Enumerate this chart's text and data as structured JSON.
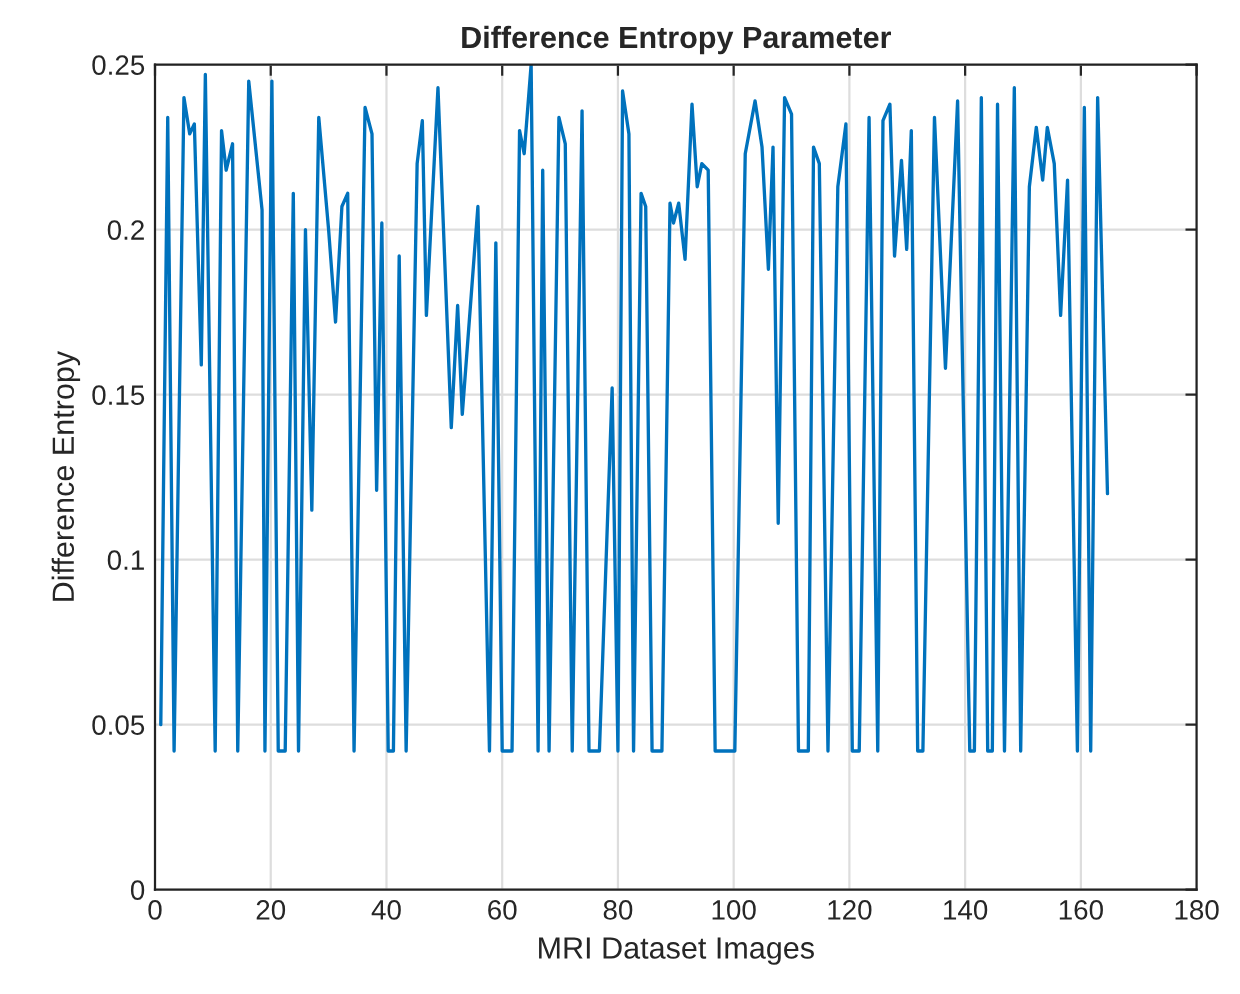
{
  "chart_data": {
    "type": "line",
    "title": "Difference Entropy Parameter",
    "xlabel": "MRI Dataset Images",
    "ylabel": "Difference Entropy",
    "series": [
      {
        "color": "#0072bd",
        "x": [
          1,
          2.2,
          3.3,
          5,
          6,
          6.8,
          8,
          8.7,
          10.4,
          11.5,
          12.3,
          13.4,
          14.3,
          16.2,
          18.5,
          19,
          20.2,
          21.3,
          22.5,
          23.9,
          24.8,
          26,
          27.1,
          28.3,
          30,
          31.2,
          32.3,
          33.3,
          34.4,
          36.3,
          37.5,
          38.3,
          39.2,
          40.3,
          41.2,
          42.2,
          43.4,
          45.3,
          46.2,
          46.9,
          48.9,
          51.2,
          52.3,
          53.1,
          55.8,
          57.8,
          58.9,
          60,
          61.7,
          63,
          63.8,
          65,
          66.2,
          67,
          68.1,
          69.8,
          70.9,
          72.1,
          73.8,
          75,
          76.8,
          79,
          80,
          80.8,
          81.9,
          82.7,
          84,
          84.8,
          85.9,
          87.6,
          89,
          89.6,
          90.5,
          91.6,
          92.8,
          93.7,
          94.5,
          95.6,
          96.8,
          100.2,
          102,
          103.7,
          104.9,
          106,
          106.8,
          107.7,
          108.8,
          110,
          111.2,
          112.9,
          113.8,
          114.8,
          116.3,
          118,
          119.4,
          120.5,
          121.7,
          123.4,
          124.9,
          125.8,
          127,
          127.8,
          129,
          129.9,
          130.7,
          131.8,
          132.7,
          134.7,
          136.6,
          138.7,
          140.8,
          141.6,
          142.8,
          143.9,
          144.7,
          145.6,
          146.8,
          148.5,
          149.6,
          151.1,
          152.3,
          153.4,
          154.2,
          155.4,
          156.5,
          157.7,
          159.4,
          160.6,
          161.7,
          162.9,
          164.6
        ],
        "values": [
          0.05,
          0.234,
          0.042,
          0.24,
          0.229,
          0.232,
          0.159,
          0.247,
          0.042,
          0.23,
          0.218,
          0.226,
          0.042,
          0.245,
          0.206,
          0.042,
          0.245,
          0.042,
          0.042,
          0.211,
          0.042,
          0.2,
          0.115,
          0.234,
          0.2,
          0.172,
          0.207,
          0.211,
          0.042,
          0.237,
          0.229,
          0.121,
          0.202,
          0.042,
          0.042,
          0.192,
          0.042,
          0.22,
          0.233,
          0.174,
          0.243,
          0.14,
          0.177,
          0.144,
          0.207,
          0.042,
          0.196,
          0.042,
          0.042,
          0.23,
          0.223,
          0.25,
          0.042,
          0.218,
          0.042,
          0.234,
          0.226,
          0.042,
          0.236,
          0.042,
          0.042,
          0.152,
          0.042,
          0.242,
          0.229,
          0.042,
          0.211,
          0.207,
          0.042,
          0.042,
          0.208,
          0.202,
          0.208,
          0.191,
          0.238,
          0.213,
          0.22,
          0.218,
          0.042,
          0.042,
          0.223,
          0.239,
          0.225,
          0.188,
          0.225,
          0.111,
          0.24,
          0.235,
          0.042,
          0.042,
          0.225,
          0.22,
          0.042,
          0.213,
          0.232,
          0.042,
          0.042,
          0.234,
          0.042,
          0.233,
          0.238,
          0.192,
          0.221,
          0.194,
          0.23,
          0.042,
          0.042,
          0.234,
          0.158,
          0.239,
          0.042,
          0.042,
          0.24,
          0.042,
          0.042,
          0.238,
          0.042,
          0.243,
          0.042,
          0.213,
          0.231,
          0.215,
          0.231,
          0.22,
          0.174,
          0.215,
          0.042,
          0.237,
          0.042,
          0.24,
          0.12
        ]
      }
    ],
    "xlim": [
      0,
      180
    ],
    "xticks": [
      0,
      20,
      40,
      60,
      80,
      100,
      120,
      140,
      160,
      180
    ],
    "ylim": [
      0,
      0.25
    ],
    "yticks": [
      0,
      0.05,
      0.1,
      0.15,
      0.2,
      0.25
    ],
    "grid": true,
    "line_style": "solid"
  }
}
